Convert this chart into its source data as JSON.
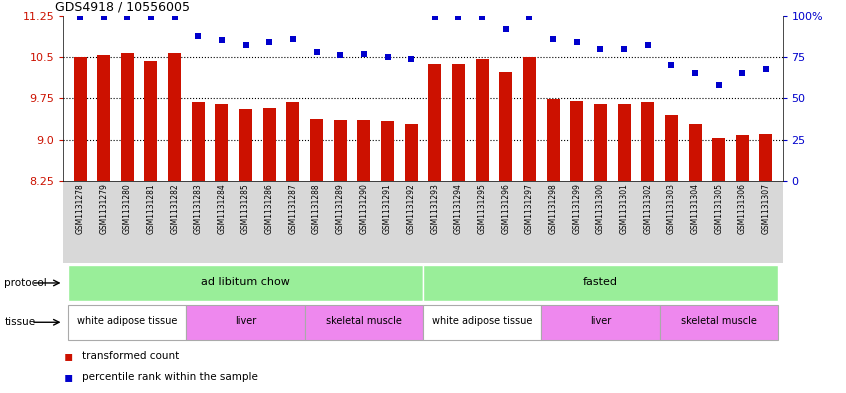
{
  "title": "GDS4918 / 10556005",
  "samples": [
    "GSM1131278",
    "GSM1131279",
    "GSM1131280",
    "GSM1131281",
    "GSM1131282",
    "GSM1131283",
    "GSM1131284",
    "GSM1131285",
    "GSM1131286",
    "GSM1131287",
    "GSM1131288",
    "GSM1131289",
    "GSM1131290",
    "GSM1131291",
    "GSM1131292",
    "GSM1131293",
    "GSM1131294",
    "GSM1131295",
    "GSM1131296",
    "GSM1131297",
    "GSM1131298",
    "GSM1131299",
    "GSM1131300",
    "GSM1131301",
    "GSM1131302",
    "GSM1131303",
    "GSM1131304",
    "GSM1131305",
    "GSM1131306",
    "GSM1131307"
  ],
  "bar_values": [
    10.5,
    10.53,
    10.57,
    10.42,
    10.58,
    9.68,
    9.64,
    9.55,
    9.58,
    9.68,
    9.38,
    9.35,
    9.35,
    9.33,
    9.28,
    10.38,
    10.38,
    10.46,
    10.22,
    10.5,
    9.73,
    9.7,
    9.65,
    9.65,
    9.68,
    9.45,
    9.28,
    9.02,
    9.08,
    9.1
  ],
  "percentile_values": [
    99,
    99,
    99,
    99,
    99,
    88,
    85,
    82,
    84,
    86,
    78,
    76,
    77,
    75,
    74,
    99,
    99,
    99,
    92,
    99,
    86,
    84,
    80,
    80,
    82,
    70,
    65,
    58,
    65,
    68
  ],
  "bar_color": "#cc1100",
  "percentile_color": "#0000cc",
  "ymin": 8.25,
  "ymax": 11.25,
  "yticks": [
    8.25,
    9.0,
    9.75,
    10.5,
    11.25
  ],
  "right_yticks": [
    0,
    25,
    50,
    75,
    100
  ],
  "right_yticklabels": [
    "0",
    "25",
    "50",
    "75",
    "100%"
  ],
  "protocol_labels": [
    "ad libitum chow",
    "fasted"
  ],
  "protocol_color": "#99ee99",
  "protocol_ranges": [
    [
      0,
      14
    ],
    [
      15,
      29
    ]
  ],
  "tissue_segments": [
    {
      "label": "white adipose tissue",
      "start": 0,
      "end": 4,
      "color": "#ffffff"
    },
    {
      "label": "liver",
      "start": 5,
      "end": 9,
      "color": "#ee88ee"
    },
    {
      "label": "skeletal muscle",
      "start": 10,
      "end": 14,
      "color": "#ee88ee"
    },
    {
      "label": "white adipose tissue",
      "start": 15,
      "end": 19,
      "color": "#ffffff"
    },
    {
      "label": "liver",
      "start": 20,
      "end": 24,
      "color": "#ee88ee"
    },
    {
      "label": "skeletal muscle",
      "start": 25,
      "end": 29,
      "color": "#ee88ee"
    }
  ],
  "legend_items": [
    {
      "label": "transformed count",
      "color": "#cc1100"
    },
    {
      "label": "percentile rank within the sample",
      "color": "#0000cc"
    }
  ]
}
